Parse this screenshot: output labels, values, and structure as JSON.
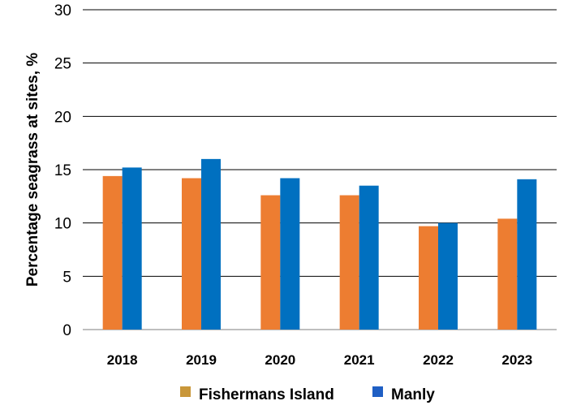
{
  "chart_data": {
    "type": "bar",
    "ylabel": "Percentage seagrass at sites, %",
    "xlabel": "",
    "ylim": [
      0,
      30
    ],
    "yticks": [
      0,
      5,
      10,
      15,
      20,
      25,
      30
    ],
    "grid": true,
    "legend_position": "bottom",
    "categories": [
      "2018",
      "2019",
      "2020",
      "2021",
      "2022",
      "2023"
    ],
    "series": [
      {
        "name": "Fishermans Island",
        "color": "#ED7D31",
        "legend_color": "#C9973A",
        "values": [
          14.4,
          14.2,
          12.6,
          12.6,
          9.7,
          10.4
        ]
      },
      {
        "name": "Manly",
        "color": "#0070C0",
        "legend_color": "#1F5FC4",
        "values": [
          15.2,
          16.0,
          14.2,
          13.5,
          10.0,
          14.1
        ]
      }
    ]
  }
}
